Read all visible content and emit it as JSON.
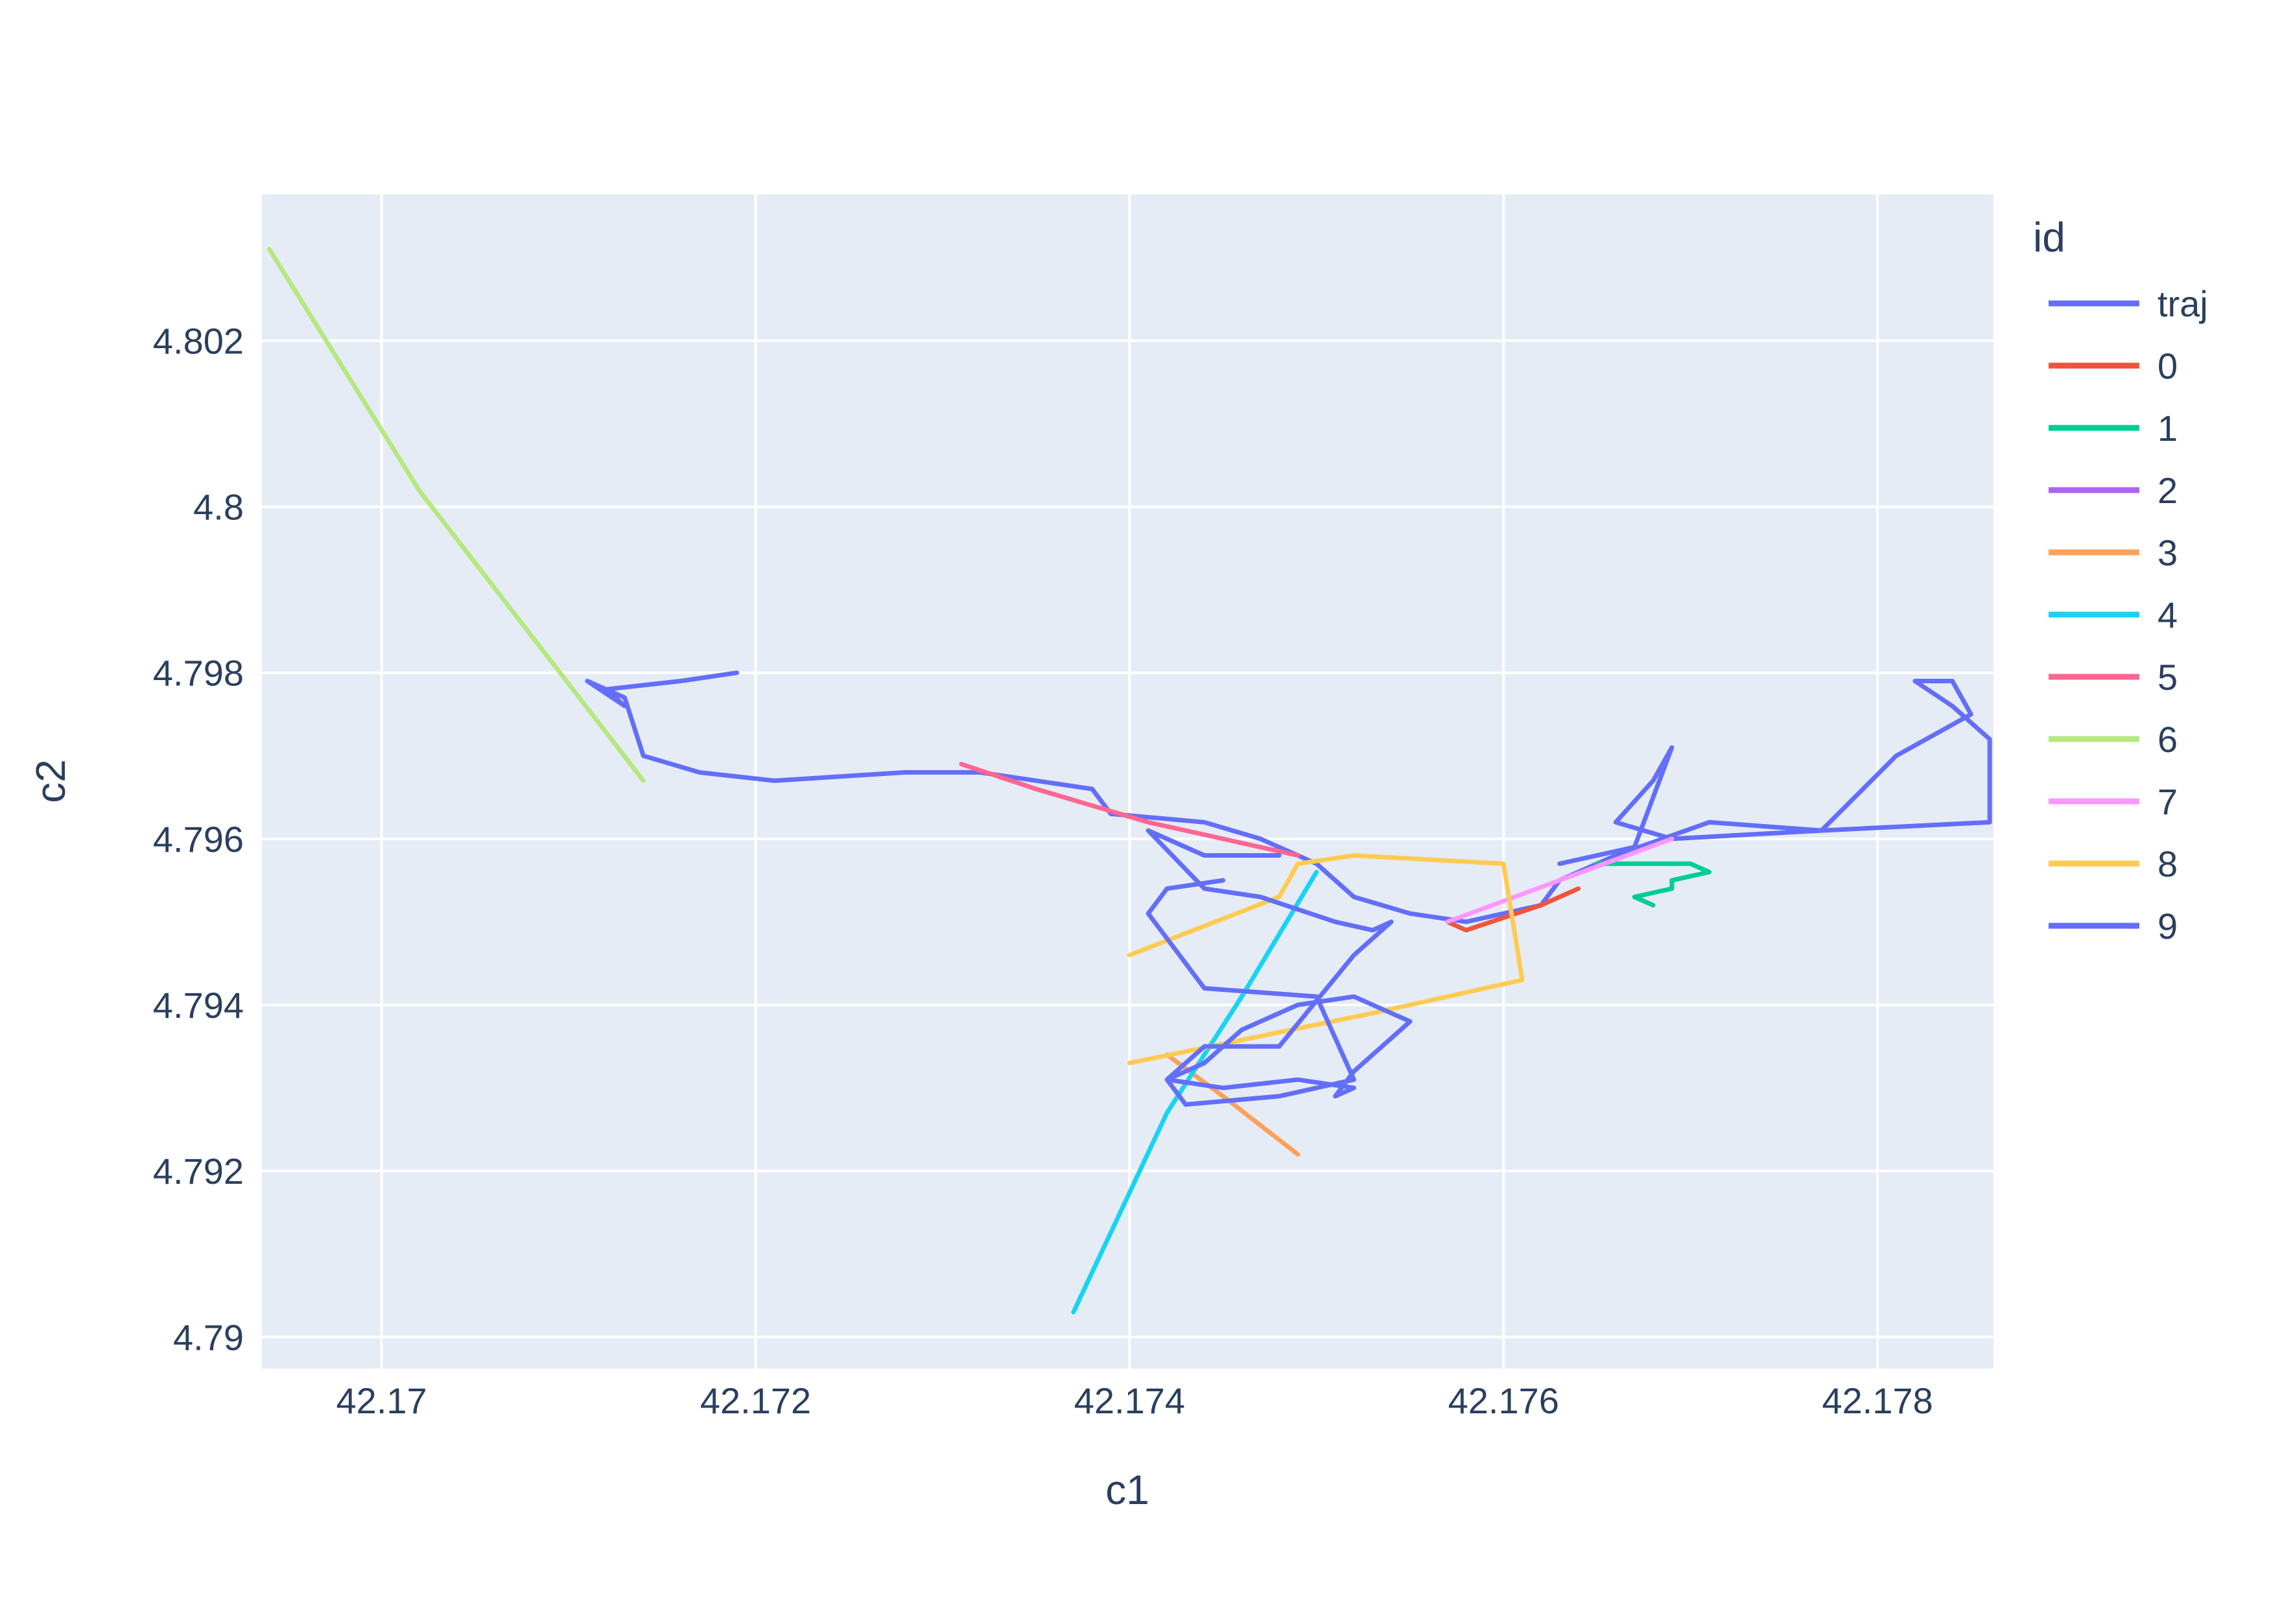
{
  "chart_data": {
    "type": "line",
    "title": "",
    "xlabel": "c1",
    "ylabel": "c2",
    "xlim": [
      42.16936,
      42.17862
    ],
    "ylim": [
      4.78962,
      4.80376
    ],
    "x_ticks": [
      {
        "value": 42.17,
        "label": "42.17"
      },
      {
        "value": 42.172,
        "label": "42.172"
      },
      {
        "value": 42.174,
        "label": "42.174"
      },
      {
        "value": 42.176,
        "label": "42.176"
      },
      {
        "value": 42.178,
        "label": "42.178"
      }
    ],
    "y_ticks": [
      {
        "value": 4.79,
        "label": "4.79"
      },
      {
        "value": 4.792,
        "label": "4.792"
      },
      {
        "value": 4.794,
        "label": "4.794"
      },
      {
        "value": 4.796,
        "label": "4.796"
      },
      {
        "value": 4.798,
        "label": "4.798"
      },
      {
        "value": 4.8,
        "label": "4.8"
      },
      {
        "value": 4.802,
        "label": "4.802"
      }
    ],
    "grid": true,
    "legend_title": "id",
    "legend_position": "right",
    "colors": {
      "plot_background": "#E5ECF6",
      "gridline": "#ffffff",
      "text": "#2a3f5f"
    },
    "series": [
      {
        "name": "traj",
        "color": "#636efa",
        "x": [
          42.1719,
          42.1716,
          42.1712,
          42.1713,
          42.1711,
          42.1713,
          42.1714,
          42.1717,
          42.1721,
          42.1728,
          42.1732,
          42.1735,
          42.1738,
          42.1739,
          42.1744,
          42.1747,
          42.175,
          42.1752,
          42.1755,
          42.1758,
          42.1762,
          42.1763,
          42.1766,
          42.1771,
          42.1777,
          42.1781,
          42.1785,
          42.1784,
          42.1782,
          42.1784,
          42.1786,
          42.1786,
          42.1777,
          42.1769,
          42.1766,
          42.1768,
          42.1769,
          42.1767,
          42.1763
        ],
        "y": [
          4.798,
          4.7979,
          4.7978,
          4.7976,
          4.7979,
          4.7977,
          4.797,
          4.7968,
          4.7967,
          4.7968,
          4.7968,
          4.7967,
          4.7966,
          4.7963,
          4.7962,
          4.796,
          4.7957,
          4.7953,
          4.7951,
          4.795,
          4.7952,
          4.7955,
          4.7958,
          4.7962,
          4.7961,
          4.797,
          4.7975,
          4.7979,
          4.7979,
          4.7976,
          4.7972,
          4.7962,
          4.7961,
          4.796,
          4.7962,
          4.7967,
          4.7971,
          4.7959,
          4.7957
        ]
      },
      {
        "name": "0",
        "color": "#EF553B",
        "x": [
          42.1757,
          42.1758,
          42.1762,
          42.1764
        ],
        "y": [
          4.795,
          4.7949,
          4.7952,
          4.7954
        ]
      },
      {
        "name": "1",
        "color": "#00cc96",
        "x": [
          42.1765,
          42.177,
          42.1771,
          42.1769,
          42.1769,
          42.1767,
          42.1768
        ],
        "y": [
          4.7957,
          4.7957,
          4.7956,
          4.7955,
          4.7954,
          4.7953,
          4.7952
        ]
      },
      {
        "name": "2",
        "color": "#ab63fa",
        "x": [],
        "y": []
      },
      {
        "name": "3",
        "color": "#FFA15A",
        "x": [
          42.1742,
          42.1745,
          42.1749
        ],
        "y": [
          4.7934,
          4.7929,
          4.7922
        ]
      },
      {
        "name": "4",
        "color": "#19d3f3",
        "x": [
          42.1737,
          42.1742,
          42.1746,
          42.175
        ],
        "y": [
          4.7903,
          4.7927,
          4.7941,
          4.7956
        ]
      },
      {
        "name": "5",
        "color": "#FF6692",
        "x": [
          42.1731,
          42.1735,
          42.1741,
          42.1749
        ],
        "y": [
          4.7969,
          4.7966,
          4.7962,
          4.7958
        ]
      },
      {
        "name": "6",
        "color": "#B6E880",
        "x": [
          42.1694,
          42.1702,
          42.1714
        ],
        "y": [
          4.8031,
          4.8002,
          4.7967
        ]
      },
      {
        "name": "7",
        "color": "#FF97FF",
        "x": [
          42.1757,
          42.1763,
          42.1769
        ],
        "y": [
          4.795,
          4.7955,
          4.796
        ]
      },
      {
        "name": "8",
        "color": "#FECB52",
        "x": [
          42.174,
          42.1748,
          42.1749,
          42.1752,
          42.176,
          42.1761,
          42.1753,
          42.174
        ],
        "y": [
          4.7946,
          4.7953,
          4.7957,
          4.7958,
          4.7957,
          4.7943,
          4.7939,
          4.7933
        ]
      },
      {
        "name": "9",
        "color": "#636efa",
        "x": [
          42.1748,
          42.1744,
          42.1741,
          42.1744,
          42.1747,
          42.1751,
          42.1753,
          42.1754,
          42.1752,
          42.1748,
          42.1744,
          42.1742,
          42.1745,
          42.1749,
          42.1752,
          42.1751,
          42.1752,
          42.1755,
          42.1752,
          42.1749,
          42.1746,
          42.1744,
          42.1742,
          42.1743,
          42.1748,
          42.1752,
          42.175,
          42.1744,
          42.1741,
          42.1742,
          42.1745
        ],
        "y": [
          4.7958,
          4.7958,
          4.7961,
          4.7954,
          4.7953,
          4.795,
          4.7949,
          4.795,
          4.7946,
          4.7935,
          4.7935,
          4.7931,
          4.793,
          4.7931,
          4.793,
          4.7929,
          4.7932,
          4.7938,
          4.7941,
          4.794,
          4.7937,
          4.7933,
          4.7931,
          4.7928,
          4.7929,
          4.7931,
          4.7941,
          4.7942,
          4.7951,
          4.7954,
          4.7955
        ]
      }
    ]
  }
}
